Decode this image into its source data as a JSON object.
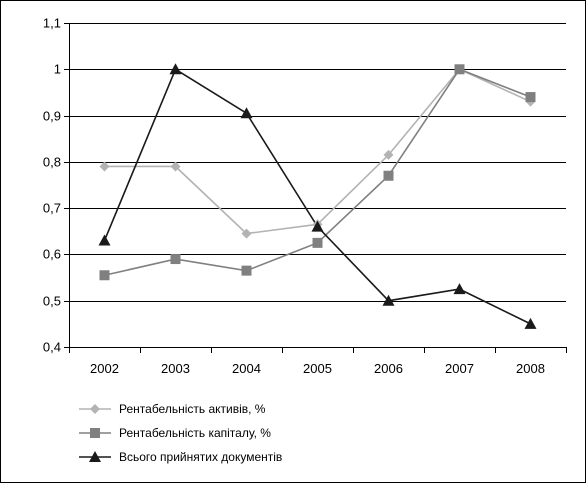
{
  "chart_data": {
    "type": "line",
    "title": "",
    "xlabel": "",
    "ylabel": "",
    "categories": [
      "2002",
      "2003",
      "2004",
      "2005",
      "2006",
      "2007",
      "2008"
    ],
    "ylim": [
      0.4,
      1.1
    ],
    "yticks": [
      0.4,
      0.5,
      0.6,
      0.7,
      0.8,
      0.9,
      1.0,
      1.1
    ],
    "ytick_labels": [
      "0,4",
      "0,5",
      "0,6",
      "0,7",
      "0,8",
      "0,9",
      "1",
      "1,1"
    ],
    "grid": true,
    "legend_position": "bottom-left",
    "series": [
      {
        "name": "Рентабельність активів, %",
        "values": [
          0.79,
          0.79,
          0.645,
          0.665,
          0.815,
          1.0,
          0.93
        ],
        "color": "#b3b3b3",
        "marker": "diamond"
      },
      {
        "name": "Рентабельність капіталу, %",
        "values": [
          0.555,
          0.59,
          0.565,
          0.625,
          0.77,
          1.0,
          0.94
        ],
        "color": "#808080",
        "marker": "square"
      },
      {
        "name": "Всього прийнятих документів",
        "values": [
          0.63,
          1.0,
          0.905,
          0.66,
          0.5,
          0.525,
          0.45
        ],
        "color": "#1a1a1a",
        "marker": "triangle"
      }
    ]
  }
}
